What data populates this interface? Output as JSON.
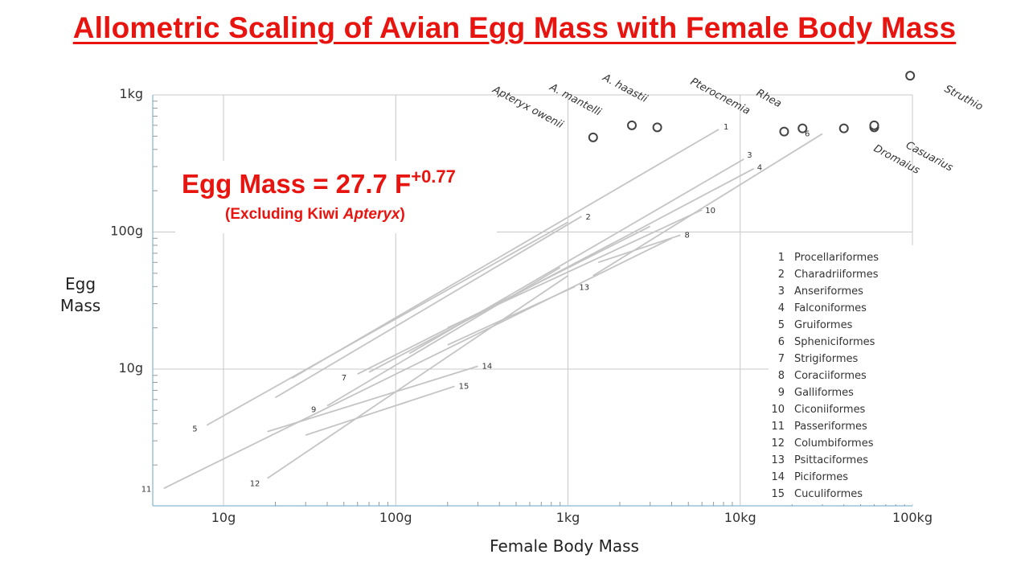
{
  "title": "Allometric Scaling of Avian Egg Mass with Female Body Mass",
  "equation": {
    "main": "Egg Mass = 27.7 F",
    "exponent": "+0.77",
    "note_prefix": "(Excluding Kiwi ",
    "note_italic": "Apteryx",
    "note_suffix": ")"
  },
  "colors": {
    "title": "#e8140f",
    "lines": "#c4c4c4",
    "grid": "#c8c8c8",
    "axis": "#9cc4dd"
  },
  "chart_data": {
    "type": "scatter",
    "xlabel": "Female Body Mass",
    "ylabel_line1": "Egg",
    "ylabel_line2": "Mass",
    "x_scale": "log",
    "y_scale": "log",
    "xlim": [
      4,
      100000
    ],
    "ylim": [
      1.3,
      1000
    ],
    "x_ticks": [
      {
        "value": 10,
        "label": "10g"
      },
      {
        "value": 100,
        "label": "100g"
      },
      {
        "value": 1000,
        "label": "1kg"
      },
      {
        "value": 10000,
        "label": "10kg"
      },
      {
        "value": 100000,
        "label": "100kg"
      }
    ],
    "y_ticks": [
      {
        "value": 10,
        "label": "10g"
      },
      {
        "value": 100,
        "label": "100g"
      },
      {
        "value": 1000,
        "label": "1kg"
      }
    ],
    "grid": true,
    "species_points": [
      {
        "name": "Apteryx owenii",
        "x": 1400,
        "y": 490
      },
      {
        "name": "A. mantelli",
        "x": 2350,
        "y": 600
      },
      {
        "name": "A. haastii",
        "x": 3300,
        "y": 580
      },
      {
        "name": "Pterocnemia",
        "x": 18000,
        "y": 540
      },
      {
        "name": "Rhea",
        "x": 23000,
        "y": 570
      },
      {
        "name": "Casuarius",
        "x": 40000,
        "y": 570
      },
      {
        "name": "Dromaius",
        "x": 60000,
        "y": 580
      },
      {
        "name": "Dromaius",
        "x": 60000,
        "y": 600
      },
      {
        "name": "Struthio",
        "x": 97000,
        "y": 1380
      }
    ],
    "order_lines": [
      {
        "id": "1",
        "x1": 25,
        "y1": 8.6,
        "x2": 7500,
        "y2": 560
      },
      {
        "id": "2",
        "x1": 20,
        "y1": 6.2,
        "x2": 1200,
        "y2": 130
      },
      {
        "id": "3",
        "x1": 120,
        "y1": 13,
        "x2": 10500,
        "y2": 340
      },
      {
        "id": "4",
        "x1": 70,
        "y1": 9.5,
        "x2": 12000,
        "y2": 290
      },
      {
        "id": "5",
        "x1": 8,
        "y1": 3.9,
        "x2": 1000,
        "y2": 118
      },
      {
        "id": "6",
        "x1": 1400,
        "y1": 48,
        "x2": 30000,
        "y2": 520
      },
      {
        "id": "7",
        "x1": 60,
        "y1": 9.2,
        "x2": 3000,
        "y2": 110
      },
      {
        "id": "8",
        "x1": 1500,
        "y1": 60,
        "x2": 4500,
        "y2": 95
      },
      {
        "id": "9",
        "x1": 40,
        "y1": 5.4,
        "x2": 900,
        "y2": 55
      },
      {
        "id": "10",
        "x1": 200,
        "y1": 20,
        "x2": 6000,
        "y2": 145
      },
      {
        "id": "11",
        "x1": 4.5,
        "y1": 1.35,
        "x2": 4000,
        "y2": 90
      },
      {
        "id": "12",
        "x1": 18,
        "y1": 1.6,
        "x2": 1000,
        "y2": 48
      },
      {
        "id": "13",
        "x1": 200,
        "y1": 15,
        "x2": 1100,
        "y2": 40
      },
      {
        "id": "14",
        "x1": 18,
        "y1": 3.5,
        "x2": 300,
        "y2": 10.5
      },
      {
        "id": "15",
        "x1": 30,
        "y1": 3.3,
        "x2": 220,
        "y2": 7.5
      }
    ],
    "legend": [
      {
        "id": "1",
        "label": "Procellariformes"
      },
      {
        "id": "2",
        "label": "Charadriiformes"
      },
      {
        "id": "3",
        "label": "Anseriformes"
      },
      {
        "id": "4",
        "label": "Falconiformes"
      },
      {
        "id": "5",
        "label": "Gruiformes"
      },
      {
        "id": "6",
        "label": "Spheniciformes"
      },
      {
        "id": "7",
        "label": "Strigiformes"
      },
      {
        "id": "8",
        "label": "Coraciiformes"
      },
      {
        "id": "9",
        "label": "Galliformes"
      },
      {
        "id": "10",
        "label": "Ciconiiformes"
      },
      {
        "id": "11",
        "label": "Passeriformes"
      },
      {
        "id": "12",
        "label": "Columbiformes"
      },
      {
        "id": "13",
        "label": "Psittaciformes"
      },
      {
        "id": "14",
        "label": "Piciformes"
      },
      {
        "id": "15",
        "label": "Cuculiformes"
      }
    ],
    "legend_position": "bottom-right"
  }
}
